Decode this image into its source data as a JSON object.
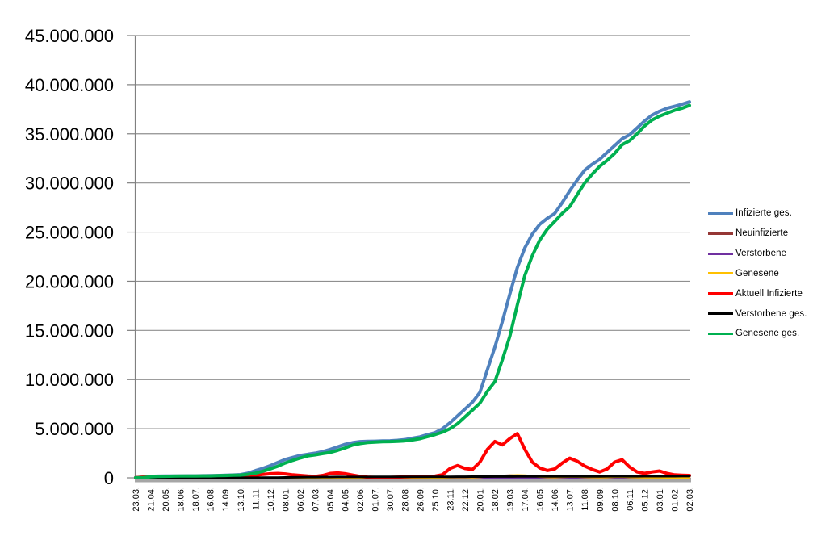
{
  "chart_data": {
    "type": "line",
    "title": "",
    "xlabel": "",
    "ylabel": "",
    "legend_position": "right",
    "grid": true,
    "background_color": "#FFFFFF",
    "grid_color": "#8F8F8F",
    "axis_color": "#808080",
    "baseline_bar_color": "#A6A6A6",
    "label_color": "#000000",
    "ylim": [
      0,
      45000000
    ],
    "y_gridline_step": 5000000,
    "values_unit": "millions of persons",
    "y_tick_labels": [
      "0",
      "5.000.000",
      "10.000.000",
      "15.000.000",
      "20.000.000",
      "25.000.000",
      "30.000.000",
      "35.000.000",
      "40.000.000",
      "45.000.000"
    ],
    "x_tick_labels": [
      "23.03.",
      "21.04.",
      "20.05.",
      "18.06.",
      "18.07.",
      "16.08.",
      "14.09.",
      "13.10.",
      "11.11.",
      "10.12.",
      "08.01.",
      "06.02.",
      "07.03.",
      "05.04.",
      "04.05.",
      "02.06.",
      "01.07.",
      "30.07.",
      "28.08.",
      "26.09.",
      "25.10.",
      "23.11.",
      "22.12.",
      "20.01.",
      "18.02.",
      "19.03.",
      "17.04.",
      "16.05.",
      "14.06.",
      "13.07.",
      "11.08.",
      "09.09.",
      "08.10.",
      "06.11.",
      "05.12.",
      "03.01.",
      "01.02.",
      "02.03."
    ],
    "samples_per_tick_interval": 2,
    "series": [
      {
        "name": "Infizierte ges.",
        "color": "#4F81BD",
        "values_millions": [
          0.03,
          0.07,
          0.16,
          0.17,
          0.18,
          0.185,
          0.19,
          0.2,
          0.2,
          0.21,
          0.22,
          0.24,
          0.26,
          0.29,
          0.33,
          0.48,
          0.73,
          0.96,
          1.24,
          1.56,
          1.87,
          2.08,
          2.28,
          2.4,
          2.51,
          2.68,
          2.89,
          3.15,
          3.42,
          3.58,
          3.69,
          3.71,
          3.73,
          3.75,
          3.77,
          3.82,
          3.89,
          4.03,
          4.17,
          4.4,
          4.6,
          5.0,
          5.6,
          6.3,
          7.0,
          7.7,
          8.7,
          11.0,
          13.3,
          15.9,
          18.7,
          21.4,
          23.4,
          24.8,
          25.8,
          26.4,
          26.9,
          28.0,
          29.2,
          30.3,
          31.3,
          31.9,
          32.4,
          33.1,
          33.8,
          34.5,
          34.9,
          35.6,
          36.3,
          36.9,
          37.3,
          37.6,
          37.8,
          38.0,
          38.25
        ]
      },
      {
        "name": "Neuinfizierte",
        "color": "#953735",
        "values_millions": [
          0.004,
          0.006,
          0.003,
          0.001,
          0.001,
          0.0005,
          0.0005,
          0.0005,
          0.0005,
          0.001,
          0.001,
          0.001,
          0.002,
          0.004,
          0.007,
          0.015,
          0.019,
          0.022,
          0.025,
          0.025,
          0.022,
          0.014,
          0.011,
          0.008,
          0.007,
          0.01,
          0.016,
          0.021,
          0.018,
          0.008,
          0.003,
          0.001,
          0.001,
          0.001,
          0.002,
          0.005,
          0.008,
          0.01,
          0.008,
          0.008,
          0.012,
          0.03,
          0.05,
          0.06,
          0.045,
          0.05,
          0.09,
          0.17,
          0.2,
          0.21,
          0.25,
          0.22,
          0.15,
          0.1,
          0.06,
          0.04,
          0.06,
          0.09,
          0.12,
          0.09,
          0.06,
          0.04,
          0.04,
          0.06,
          0.1,
          0.09,
          0.05,
          0.04,
          0.03,
          0.04,
          0.03,
          0.02,
          0.015,
          0.015,
          0.012
        ]
      },
      {
        "name": "Verstorbene",
        "color": "#7030A0",
        "values_millions": [
          0.0002,
          0.0003,
          0.0002,
          0.0002,
          0.0001,
          0.0001,
          0.0001,
          0.0001,
          0.0001,
          0.0001,
          0.0001,
          0.0001,
          0.0001,
          0.0002,
          0.0003,
          0.0004,
          0.0006,
          0.0008,
          0.0009,
          0.001,
          0.001,
          0.0009,
          0.0008,
          0.0006,
          0.0004,
          0.0003,
          0.0003,
          0.0003,
          0.0002,
          0.0002,
          0.0001,
          0.0001,
          0.0001,
          0.0001,
          0.0001,
          0.0001,
          0.0001,
          0.0001,
          0.0002,
          0.0002,
          0.0002,
          0.0003,
          0.0004,
          0.0005,
          0.0005,
          0.0004,
          0.0004,
          0.0003,
          0.0003,
          0.0003,
          0.0003,
          0.0003,
          0.0003,
          0.0003,
          0.0002,
          0.0002,
          0.0002,
          0.0002,
          0.0002,
          0.0002,
          0.0002,
          0.0002,
          0.0002,
          0.0002,
          0.0002,
          0.0002,
          0.0002,
          0.0002,
          0.0002,
          0.0002,
          0.0002,
          0.0002,
          0.0001,
          0.0001,
          0.0001
        ]
      },
      {
        "name": "Genesene",
        "color": "#FFC000",
        "values_millions": [
          0.002,
          0.005,
          0.004,
          0.002,
          0.001,
          0.0005,
          0.0005,
          0.0005,
          0.0005,
          0.0007,
          0.001,
          0.001,
          0.0015,
          0.003,
          0.005,
          0.01,
          0.015,
          0.02,
          0.023,
          0.025,
          0.024,
          0.018,
          0.012,
          0.009,
          0.007,
          0.008,
          0.013,
          0.019,
          0.02,
          0.012,
          0.005,
          0.002,
          0.001,
          0.001,
          0.0015,
          0.004,
          0.007,
          0.009,
          0.008,
          0.008,
          0.01,
          0.02,
          0.04,
          0.055,
          0.05,
          0.045,
          0.07,
          0.13,
          0.18,
          0.2,
          0.24,
          0.27,
          0.25,
          0.18,
          0.1,
          0.06,
          0.05,
          0.08,
          0.11,
          0.1,
          0.07,
          0.05,
          0.04,
          0.05,
          0.09,
          0.1,
          0.06,
          0.045,
          0.035,
          0.035,
          0.03,
          0.025,
          0.018,
          0.015,
          0.013
        ]
      },
      {
        "name": "Aktuell Infizierte",
        "color": "#FF0000",
        "values_millions": [
          0.025,
          0.08,
          0.06,
          0.025,
          0.012,
          0.009,
          0.008,
          0.007,
          0.007,
          0.009,
          0.013,
          0.016,
          0.02,
          0.03,
          0.045,
          0.11,
          0.25,
          0.35,
          0.42,
          0.45,
          0.4,
          0.3,
          0.25,
          0.18,
          0.15,
          0.25,
          0.45,
          0.5,
          0.42,
          0.28,
          0.15,
          0.07,
          0.04,
          0.04,
          0.045,
          0.07,
          0.1,
          0.13,
          0.15,
          0.16,
          0.17,
          0.32,
          0.95,
          1.25,
          0.95,
          0.85,
          1.6,
          2.9,
          3.7,
          3.35,
          4.0,
          4.5,
          2.9,
          1.6,
          1.0,
          0.75,
          0.9,
          1.5,
          2.0,
          1.7,
          1.2,
          0.85,
          0.6,
          0.9,
          1.6,
          1.85,
          1.1,
          0.6,
          0.45,
          0.6,
          0.7,
          0.45,
          0.3,
          0.27,
          0.25
        ]
      },
      {
        "name": "Verstorbene ges.",
        "color": "#000000",
        "values_millions": [
          0.0002,
          0.002,
          0.005,
          0.007,
          0.008,
          0.0085,
          0.0088,
          0.009,
          0.0091,
          0.0093,
          0.0094,
          0.0096,
          0.0098,
          0.01,
          0.01,
          0.011,
          0.012,
          0.015,
          0.02,
          0.028,
          0.038,
          0.051,
          0.061,
          0.071,
          0.077,
          0.082,
          0.085,
          0.088,
          0.09,
          0.092,
          0.093,
          0.094,
          0.095,
          0.096,
          0.097,
          0.098,
          0.099,
          0.1,
          0.101,
          0.102,
          0.103,
          0.105,
          0.108,
          0.112,
          0.116,
          0.12,
          0.123,
          0.126,
          0.129,
          0.132,
          0.134,
          0.136,
          0.138,
          0.14,
          0.142,
          0.143,
          0.144,
          0.145,
          0.146,
          0.147,
          0.148,
          0.149,
          0.15,
          0.152,
          0.154,
          0.156,
          0.158,
          0.16,
          0.162,
          0.164,
          0.166,
          0.167,
          0.168,
          0.169,
          0.17
        ]
      },
      {
        "name": "Genesene ges.",
        "color": "#00B050",
        "values_millions": [
          0.01,
          0.03,
          0.1,
          0.15,
          0.16,
          0.17,
          0.18,
          0.185,
          0.19,
          0.195,
          0.2,
          0.22,
          0.24,
          0.26,
          0.28,
          0.36,
          0.48,
          0.67,
          0.92,
          1.18,
          1.51,
          1.78,
          2.02,
          2.23,
          2.34,
          2.47,
          2.59,
          2.8,
          3.05,
          3.33,
          3.49,
          3.59,
          3.64,
          3.67,
          3.69,
          3.72,
          3.76,
          3.86,
          3.98,
          4.2,
          4.4,
          4.65,
          5.0,
          5.5,
          6.2,
          6.9,
          7.6,
          8.8,
          9.8,
          12.0,
          14.4,
          17.6,
          20.6,
          22.6,
          24.2,
          25.3,
          26.1,
          26.9,
          27.6,
          28.8,
          30.0,
          30.9,
          31.7,
          32.3,
          33.0,
          33.9,
          34.3,
          35.0,
          35.8,
          36.4,
          36.8,
          37.1,
          37.4,
          37.6,
          37.9
        ]
      }
    ]
  },
  "legend": {
    "items": [
      "Infizierte ges.",
      "Neuinfizierte",
      "Verstorbene",
      "Genesene",
      "Aktuell Infizierte",
      "Verstorbene ges.",
      "Genesene ges."
    ]
  }
}
